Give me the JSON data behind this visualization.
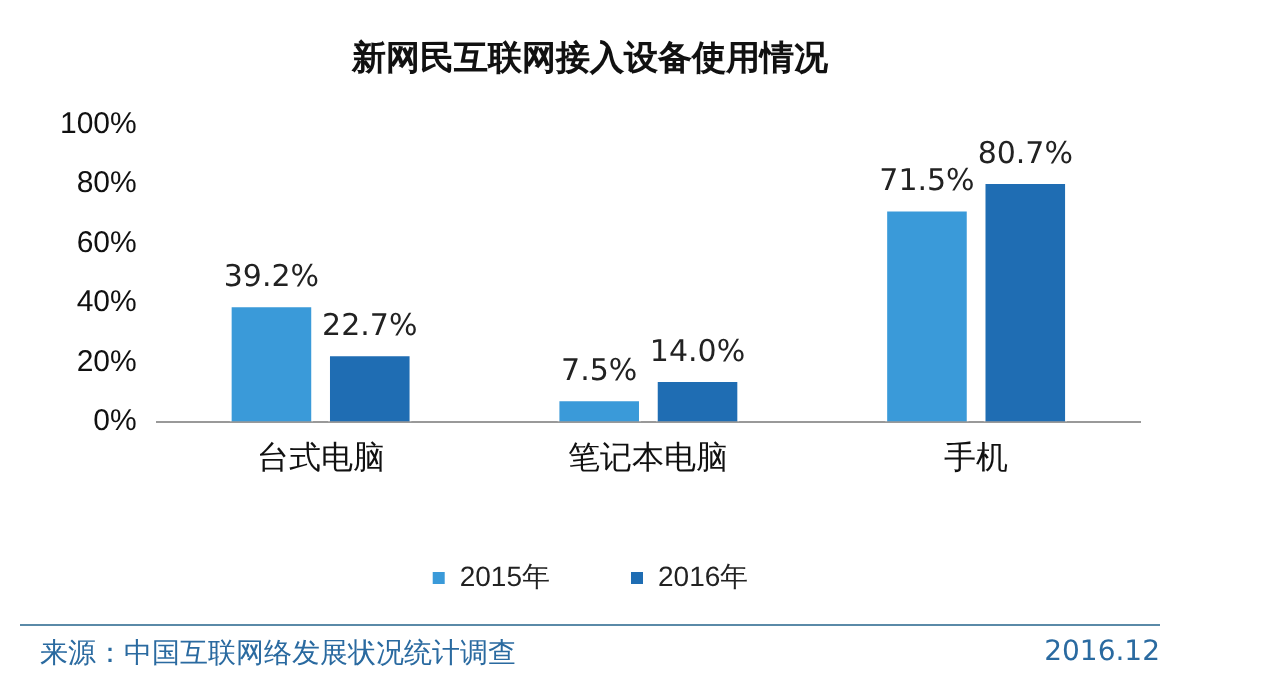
{
  "chart_data": {
    "type": "bar",
    "title": "新网民互联网接入设备使用情况",
    "categories": [
      "台式电脑",
      "笔记本电脑",
      "手机"
    ],
    "series": [
      {
        "name": "2015年",
        "color": "#3a9ad9",
        "values": [
          39.2,
          7.5,
          71.5
        ]
      },
      {
        "name": "2016年",
        "color": "#1f6db3",
        "values": [
          22.7,
          14.0,
          80.7
        ]
      }
    ],
    "value_labels": [
      [
        "39.2%",
        "7.5%",
        "71.5%"
      ],
      [
        "22.7%",
        "14.0%",
        "80.7%"
      ]
    ],
    "ylim": [
      0,
      100
    ],
    "yticks": [
      {
        "value": 0,
        "label": "0%"
      },
      {
        "value": 20,
        "label": "20%"
      },
      {
        "value": 40,
        "label": "40%"
      },
      {
        "value": 60,
        "label": "60%"
      },
      {
        "value": 80,
        "label": "80%"
      },
      {
        "value": 100,
        "label": "100%"
      }
    ],
    "grid": false,
    "legend": "bottom",
    "annotations": [
      "来源：中国互联网络发展状况统计调查",
      "2016.12"
    ]
  }
}
